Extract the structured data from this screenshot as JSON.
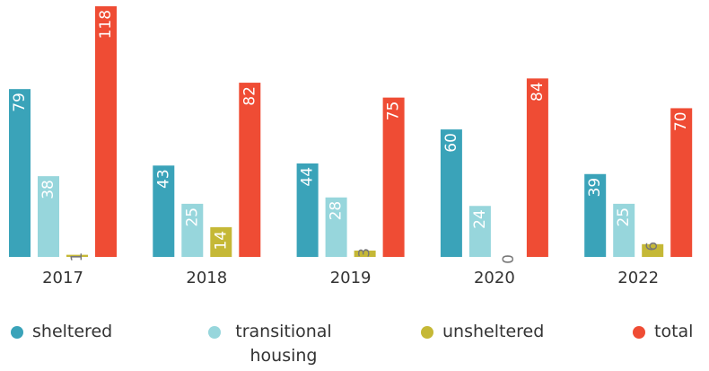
{
  "chart_data": {
    "type": "bar",
    "categories": [
      "2017",
      "2018",
      "2019",
      "2020",
      "2022"
    ],
    "series": [
      {
        "name": "sheltered",
        "color": "#3aa3b9",
        "values": [
          79,
          43,
          44,
          60,
          39
        ]
      },
      {
        "name": "transitional housing",
        "color": "#97d6dc",
        "values": [
          38,
          25,
          28,
          24,
          25
        ]
      },
      {
        "name": "unsheltered",
        "color": "#c5b836",
        "values": [
          1,
          14,
          3,
          0,
          6
        ]
      },
      {
        "name": "total",
        "color": "#ef4c34",
        "values": [
          118,
          82,
          75,
          84,
          70
        ]
      }
    ]
  }
}
